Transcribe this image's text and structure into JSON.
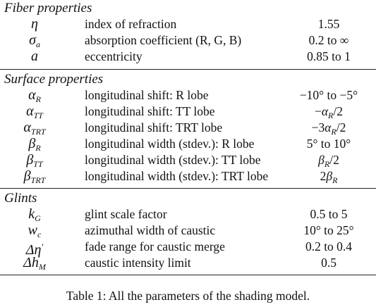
{
  "sections": [
    {
      "title": "Fiber properties",
      "rows": [
        {
          "sym": "η",
          "sub": "",
          "sup": "",
          "desc": "index of refraction",
          "value": "1.55"
        },
        {
          "sym": "σ",
          "sub": "a",
          "sup": "",
          "desc": "absorption coefficient (R, G, B)",
          "value": "0.2 to ∞"
        },
        {
          "sym": "a",
          "sub": "",
          "sup": "",
          "desc": "eccentricity",
          "value": "0.85 to 1"
        }
      ]
    },
    {
      "title": "Surface properties",
      "rows": [
        {
          "sym": "α",
          "sub": "R",
          "sup": "",
          "desc": "longitudinal shift: R lobe",
          "value": "−10° to −5°"
        },
        {
          "sym": "α",
          "sub": "TT",
          "sup": "",
          "desc": "longitudinal shift: TT lobe",
          "value": "−α",
          "value_sub": "R",
          "value_tail": "/2"
        },
        {
          "sym": "α",
          "sub": "TRT",
          "sup": "",
          "desc": "longitudinal shift: TRT lobe",
          "value": "−3α",
          "value_sub": "R",
          "value_tail": "/2"
        },
        {
          "sym": "β",
          "sub": "R",
          "sup": "",
          "desc": "longitudinal width (stdev.): R lobe",
          "value": "5° to 10°"
        },
        {
          "sym": "β",
          "sub": "TT",
          "sup": "",
          "desc": "longitudinal width (stdev.): TT lobe",
          "value": "β",
          "value_sub": "R",
          "value_tail": "/2"
        },
        {
          "sym": "β",
          "sub": "TRT",
          "sup": "",
          "desc": "longitudinal width (stdev.): TRT lobe",
          "value": "2β",
          "value_sub": "R",
          "value_tail": ""
        }
      ]
    },
    {
      "title": "Glints",
      "rows": [
        {
          "sym": "k",
          "sub": "G",
          "sup": "",
          "desc": "glint scale factor",
          "value": "0.5 to 5"
        },
        {
          "sym": "w",
          "sub": "c",
          "sup": "",
          "desc": "azimuthal width of caustic",
          "value": "10° to 25°"
        },
        {
          "sym": "Δη",
          "sub": "",
          "sup": "′",
          "desc": "fade range for caustic merge",
          "value": "0.2 to 0.4"
        },
        {
          "sym": "Δh",
          "sub": "M",
          "sup": "",
          "desc": "caustic intensity limit",
          "value": "0.5"
        }
      ]
    }
  ],
  "caption": "Table 1: All the parameters of the shading model."
}
